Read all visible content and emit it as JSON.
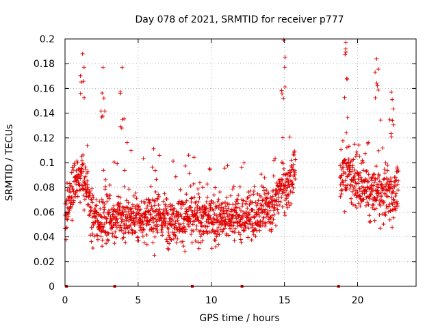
{
  "chart_data": {
    "type": "scatter",
    "title": "Day 078 of 2021, SRMTID for receiver p777",
    "xlabel": "GPS time / hours",
    "ylabel": "SRMTID / TECUs",
    "xlim": [
      0,
      24
    ],
    "ylim": [
      0,
      0.2
    ],
    "x_ticks": [
      0,
      5,
      10,
      15,
      20
    ],
    "x_tick_labels": [
      "0",
      "5",
      "10",
      "15",
      "20"
    ],
    "y_ticks": [
      0,
      0.02,
      0.04,
      0.06,
      0.08,
      0.1,
      0.12,
      0.14,
      0.16,
      0.18,
      0.2
    ],
    "y_tick_labels": [
      "0",
      "0.02",
      "0.04",
      "0.06",
      "0.08",
      "0.1",
      "0.12",
      "0.14",
      "0.16",
      "0.18",
      "0.2"
    ],
    "grid": true,
    "marker": "plus",
    "series": [
      {
        "name": "SRMTID",
        "color": "#e00000",
        "segments": [
          {
            "x_start": 0.0,
            "x_end": 15.75,
            "baseline": 0.055,
            "spread": 0.016
          },
          {
            "x_start": 18.8,
            "x_end": 22.8,
            "baseline": 0.075,
            "spread": 0.018
          }
        ],
        "peaks": [
          {
            "x": 1.2,
            "y": 0.188
          },
          {
            "x": 2.6,
            "y": 0.177
          },
          {
            "x": 3.9,
            "y": 0.177
          },
          {
            "x": 14.95,
            "y": 0.199
          },
          {
            "x": 19.2,
            "y": 0.197
          },
          {
            "x": 21.3,
            "y": 0.184
          },
          {
            "x": 22.3,
            "y": 0.157
          }
        ],
        "gap_markers_x": [
          0.1,
          3.4,
          8.7,
          12.1,
          18.7
        ]
      }
    ]
  }
}
